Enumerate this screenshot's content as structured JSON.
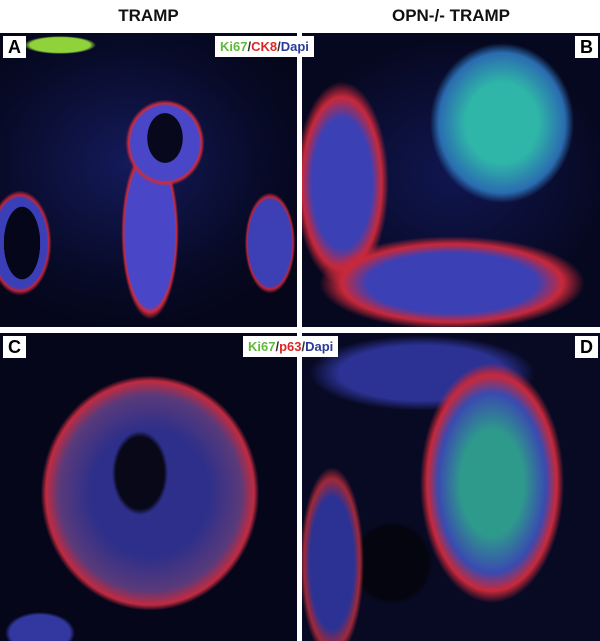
{
  "columns": [
    {
      "title": "TRAMP"
    },
    {
      "title": "OPN-/- TRAMP"
    }
  ],
  "panels": [
    {
      "letter": "A",
      "group": "TRAMP"
    },
    {
      "letter": "B",
      "group": "OPN-/- TRAMP"
    },
    {
      "letter": "C",
      "group": "TRAMP"
    },
    {
      "letter": "D",
      "group": "OPN-/- TRAMP"
    }
  ],
  "legends": {
    "top": {
      "marker1": "Ki67",
      "sep1": "/",
      "marker2": "CK8",
      "sep2": "/",
      "marker3": "Dapi"
    },
    "bottom": {
      "marker1": "Ki67",
      "sep1": "/",
      "marker2": "p63",
      "sep2": "/",
      "marker3": "Dapi"
    }
  },
  "colors": {
    "ki67": "#5fb93a",
    "ck8_p63": "#e02525",
    "dapi": "#2a3a9c"
  }
}
